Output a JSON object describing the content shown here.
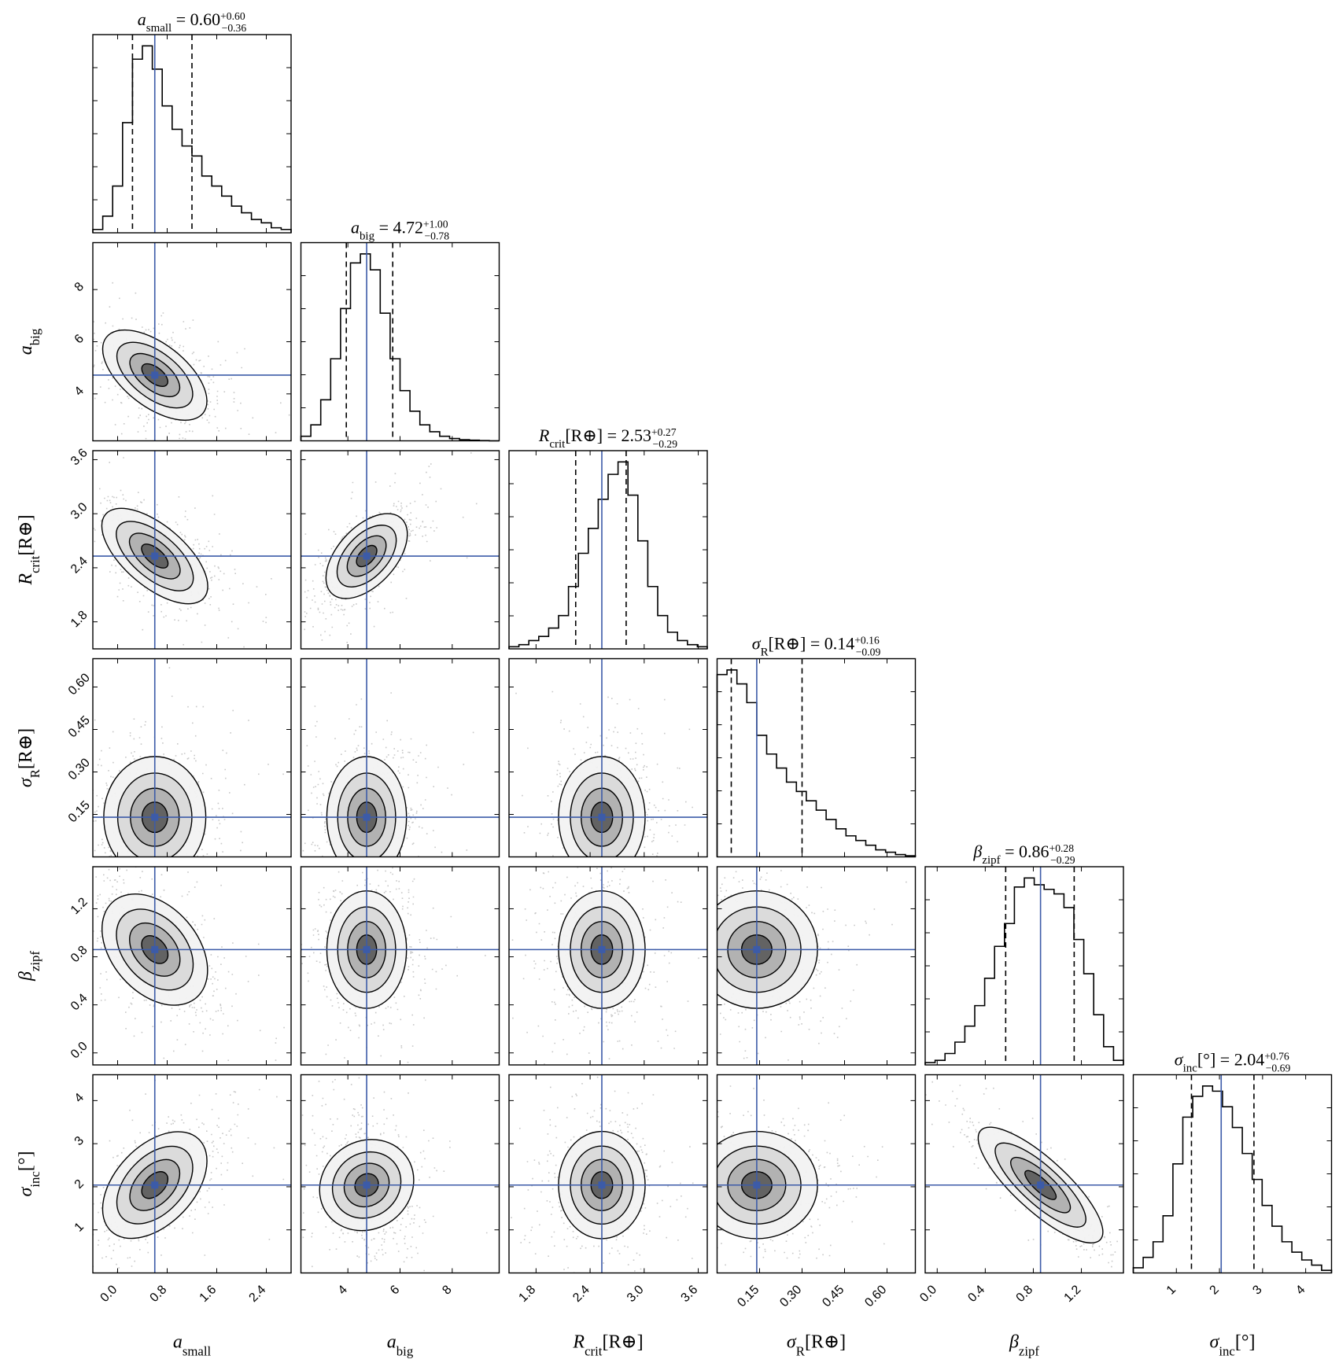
{
  "chart_data": {
    "type": "corner",
    "params": [
      {
        "key": "a_small",
        "label_main": "a",
        "label_sub": "small",
        "label_suffix": "",
        "range": [
          -0.4,
          2.8
        ],
        "ticks": [
          0.0,
          0.8,
          1.6,
          2.4
        ],
        "tick_labels": [
          "0.0",
          "0.8",
          "1.6",
          "2.4"
        ],
        "median": 0.6,
        "plus": "+0.60",
        "minus": "−0.36",
        "median_text": "0.60",
        "q_low": 0.24,
        "q_high": 1.2,
        "hist_counts": [
          1,
          5,
          14,
          33,
          52,
          56,
          49,
          38,
          31,
          26,
          23,
          17,
          14,
          11,
          8,
          6,
          4,
          3,
          1.5,
          1
        ]
      },
      {
        "key": "a_big",
        "label_main": "a",
        "label_sub": "big",
        "label_suffix": "",
        "range": [
          2.2,
          9.8
        ],
        "ticks": [
          4,
          6,
          8
        ],
        "tick_labels": [
          "4",
          "6",
          "8"
        ],
        "median": 4.72,
        "plus": "+1.00",
        "minus": "−0.78",
        "median_text": "4.72",
        "q_low": 3.94,
        "q_high": 5.72,
        "hist_counts": [
          2,
          7,
          18,
          36,
          58,
          78,
          82,
          75,
          56,
          36,
          22,
          13,
          7,
          4,
          2,
          1,
          0.5,
          0.3,
          0.1,
          0
        ]
      },
      {
        "key": "R_crit",
        "label_main": "R",
        "label_sub": "crit",
        "label_suffix": "[R⊕]",
        "range": [
          1.5,
          3.7
        ],
        "ticks": [
          1.8,
          2.4,
          3.0,
          3.6
        ],
        "tick_labels": [
          "1.8",
          "2.4",
          "3.0",
          "3.6"
        ],
        "median": 2.53,
        "plus": "+0.27",
        "minus": "−0.29",
        "median_text": "2.53",
        "q_low": 2.24,
        "q_high": 2.8,
        "hist_counts": [
          1,
          2,
          4,
          6,
          10,
          16,
          30,
          46,
          58,
          72,
          84,
          90,
          74,
          52,
          30,
          16,
          8,
          4,
          2,
          1
        ]
      },
      {
        "key": "sigma_R",
        "label_main": "σ",
        "label_sub": "R",
        "label_suffix": "[R⊕]",
        "range": [
          0.0,
          0.7
        ],
        "ticks": [
          0.15,
          0.3,
          0.45,
          0.6
        ],
        "tick_labels": [
          "0.15",
          "0.30",
          "0.45",
          "0.60"
        ],
        "median": 0.14,
        "plus": "+0.16",
        "minus": "−0.09",
        "median_text": "0.14",
        "q_low": 0.05,
        "q_high": 0.3,
        "hist_counts": [
          78,
          80,
          74,
          66,
          52,
          44,
          38,
          32,
          28,
          24,
          20,
          16,
          12,
          9,
          7,
          5,
          3,
          2,
          1,
          0.5
        ]
      },
      {
        "key": "beta_zipf",
        "label_main": "β",
        "label_sub": "zipf",
        "label_suffix": "",
        "range": [
          -0.1,
          1.55
        ],
        "ticks": [
          0.0,
          0.4,
          0.8,
          1.2
        ],
        "tick_labels": [
          "0.0",
          "0.4",
          "0.8",
          "1.2"
        ],
        "median": 0.86,
        "plus": "+0.28",
        "minus": "−0.29",
        "median_text": "0.86",
        "q_low": 0.57,
        "q_high": 1.14,
        "hist_counts": [
          1,
          2,
          5,
          10,
          17,
          26,
          38,
          52,
          62,
          78,
          82,
          79,
          77,
          75,
          69,
          55,
          40,
          22,
          8,
          2
        ]
      },
      {
        "key": "sigma_inc",
        "label_main": "σ",
        "label_sub": "inc",
        "label_suffix": "[°]",
        "range": [
          0.0,
          4.6
        ],
        "ticks": [
          1,
          2,
          3,
          4
        ],
        "tick_labels": [
          "1",
          "2",
          "3",
          "4"
        ],
        "median": 2.04,
        "plus": "+0.76",
        "minus": "−0.69",
        "median_text": "2.04",
        "q_low": 1.35,
        "q_high": 2.8,
        "hist_counts": [
          2,
          6,
          12,
          22,
          42,
          60,
          68,
          72,
          70,
          64,
          56,
          46,
          36,
          26,
          18,
          12,
          8,
          5,
          3,
          1
        ]
      }
    ],
    "correlations": {
      "1-0": -0.45,
      "2-0": -0.6,
      "2-1": 0.65,
      "3-0": 0.0,
      "3-1": 0.0,
      "3-2": 0.0,
      "4-0": -0.55,
      "4-1": 0.0,
      "4-2": 0.0,
      "4-3": 0.0,
      "5-0": 0.55,
      "5-1": -0.2,
      "5-2": 0.0,
      "5-3": 0.0,
      "5-4": -0.9
    },
    "truth_color": "#3c5ba8",
    "density_color": "#000000",
    "grid": false
  }
}
